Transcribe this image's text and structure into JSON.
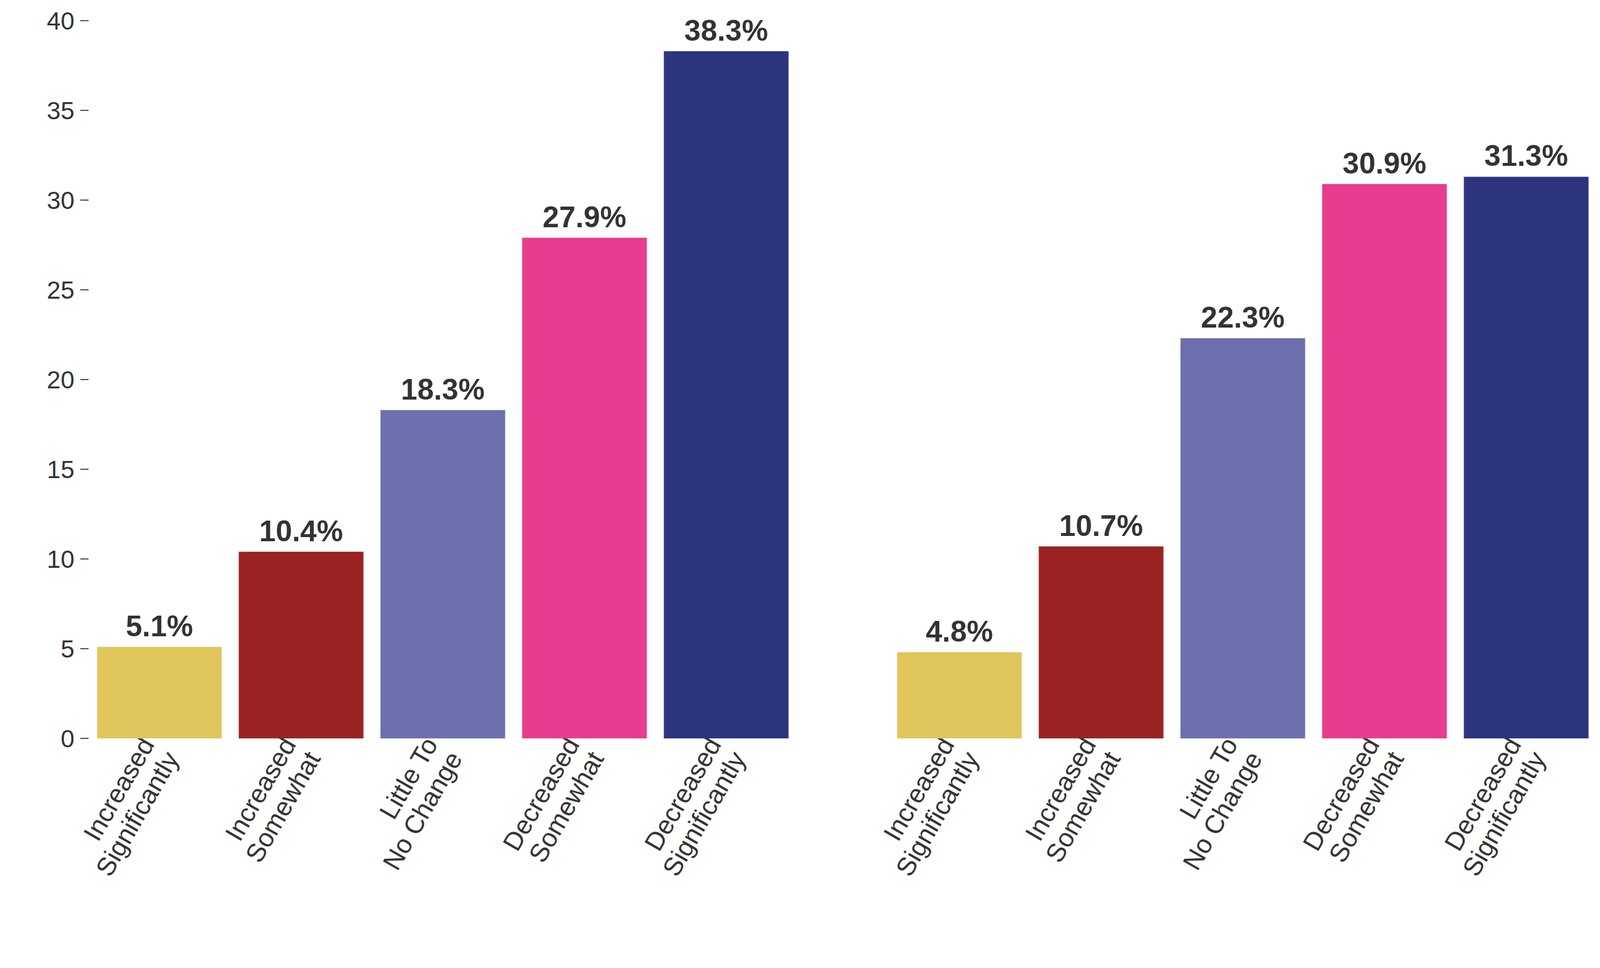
{
  "chart_data": [
    {
      "type": "bar",
      "categories": [
        "Increased\nSignificantly",
        "Increased\nSomewhat",
        "Little To\nNo Change",
        "Decreased\nSomewhat",
        "Decreased\nSignificantly"
      ],
      "values": [
        5.1,
        10.4,
        18.3,
        27.9,
        38.3
      ],
      "value_labels": [
        "5.1%",
        "10.4%",
        "18.3%",
        "27.9%",
        "38.3%"
      ],
      "colors": [
        "#e0c55a",
        "#9b2223",
        "#6d70ad",
        "#e83d8f",
        "#2d3480"
      ],
      "ylim": [
        0,
        40
      ],
      "yticks": [
        0,
        5,
        10,
        15,
        20,
        25,
        30,
        35,
        40
      ],
      "grid": false,
      "data_labels": true
    },
    {
      "type": "bar",
      "categories": [
        "Increased\nSignificantly",
        "Increased\nSomewhat",
        "Little To\nNo Change",
        "Decreased\nSomewhat",
        "Decreased\nSignificantly"
      ],
      "values": [
        4.8,
        10.7,
        22.3,
        30.9,
        31.3
      ],
      "value_labels": [
        "4.8%",
        "10.7%",
        "22.3%",
        "30.9%",
        "31.3%"
      ],
      "colors": [
        "#e0c55a",
        "#9b2223",
        "#6d70ad",
        "#e83d8f",
        "#2d3480"
      ],
      "ylim": [
        0,
        40
      ],
      "yticks": [
        0,
        5,
        10,
        15,
        20,
        25,
        30,
        35,
        40
      ],
      "grid": false,
      "data_labels": true,
      "tick_labels": "x"
    }
  ]
}
